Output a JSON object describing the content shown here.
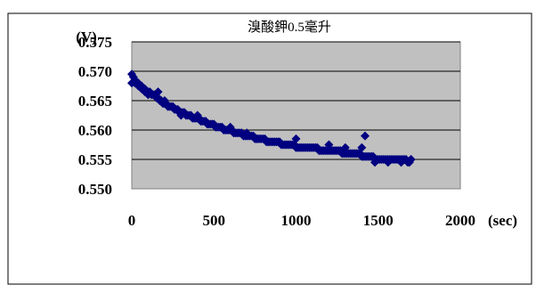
{
  "chart_data": {
    "type": "scatter",
    "title": "溴酸鉀0.5毫升",
    "ylabel": "(V)",
    "xlabel": "(sec)",
    "xlim": [
      0,
      2000
    ],
    "ylim": [
      0.55,
      0.575
    ],
    "x_ticks": [
      "0",
      "500",
      "1000",
      "1500",
      "2000"
    ],
    "y_ticks": [
      "0.550",
      "0.555",
      "0.560",
      "0.565",
      "0.570",
      "0.575"
    ],
    "grid": "horizontal",
    "plot_background": "#c0c0c0",
    "marker_color": "#000080",
    "series": [
      {
        "x": [
          0,
          10,
          20,
          30,
          40,
          50,
          60,
          70,
          80,
          90,
          100,
          110,
          120,
          130,
          140,
          150,
          160,
          170,
          180,
          190,
          200,
          210,
          220,
          230,
          240,
          250,
          260,
          270,
          280,
          290,
          300,
          310,
          320,
          330,
          340,
          350,
          360,
          370,
          380,
          390,
          400,
          410,
          420,
          430,
          440,
          450,
          460,
          470,
          480,
          490,
          500,
          510,
          520,
          530,
          540,
          550,
          560,
          570,
          580,
          590,
          600,
          610,
          620,
          630,
          640,
          650,
          660,
          670,
          680,
          690,
          700,
          710,
          720,
          730,
          740,
          750,
          760,
          770,
          780,
          790,
          800,
          810,
          820,
          830,
          840,
          850,
          860,
          870,
          880,
          890,
          900,
          910,
          920,
          930,
          940,
          950,
          960,
          970,
          980,
          990,
          1000,
          1010,
          1020,
          1030,
          1040,
          1050,
          1060,
          1070,
          1080,
          1090,
          1100,
          1110,
          1120,
          1130,
          1140,
          1150,
          1160,
          1170,
          1180,
          1190,
          1200,
          1210,
          1220,
          1230,
          1240,
          1250,
          1260,
          1270,
          1280,
          1290,
          1300,
          1310,
          1320,
          1330,
          1340,
          1350,
          1360,
          1370,
          1380,
          1390,
          1400,
          1410,
          1420,
          1430,
          1440,
          1450,
          1460,
          1470,
          1480,
          1490,
          1500,
          1510,
          1520,
          1530,
          1540,
          1550,
          1560,
          1570,
          1580,
          1590,
          1600,
          1610,
          1620,
          1630,
          1640,
          1650,
          1660,
          1670,
          1680,
          1690,
          1700,
          0,
          20,
          40,
          60,
          80,
          100,
          160,
          200,
          300,
          400,
          600,
          700,
          760,
          1000,
          1200,
          1300,
          1400,
          1420,
          1480,
          1560,
          1640,
          1700
        ],
        "y": [
          0.5695,
          0.569,
          0.5685,
          0.568,
          0.568,
          0.5675,
          0.5675,
          0.567,
          0.567,
          0.5665,
          0.5665,
          0.5665,
          0.566,
          0.566,
          0.566,
          0.5655,
          0.5655,
          0.565,
          0.565,
          0.5645,
          0.5645,
          0.5645,
          0.564,
          0.564,
          0.564,
          0.564,
          0.5635,
          0.5635,
          0.5635,
          0.563,
          0.563,
          0.563,
          0.563,
          0.5625,
          0.5625,
          0.5625,
          0.5625,
          0.562,
          0.562,
          0.562,
          0.562,
          0.562,
          0.5615,
          0.5615,
          0.5615,
          0.5615,
          0.561,
          0.561,
          0.561,
          0.561,
          0.561,
          0.5605,
          0.5605,
          0.5605,
          0.5605,
          0.5605,
          0.56,
          0.56,
          0.56,
          0.56,
          0.56,
          0.56,
          0.5595,
          0.5595,
          0.5595,
          0.5595,
          0.5595,
          0.5595,
          0.559,
          0.559,
          0.559,
          0.559,
          0.559,
          0.559,
          0.559,
          0.5585,
          0.5585,
          0.5585,
          0.5585,
          0.5585,
          0.5585,
          0.5585,
          0.558,
          0.558,
          0.558,
          0.558,
          0.558,
          0.558,
          0.558,
          0.558,
          0.558,
          0.5575,
          0.5575,
          0.5575,
          0.5575,
          0.5575,
          0.5575,
          0.5575,
          0.5575,
          0.5575,
          0.557,
          0.557,
          0.557,
          0.557,
          0.557,
          0.557,
          0.557,
          0.557,
          0.557,
          0.557,
          0.557,
          0.557,
          0.557,
          0.557,
          0.5565,
          0.5565,
          0.5565,
          0.5565,
          0.5565,
          0.5565,
          0.5565,
          0.5565,
          0.5565,
          0.5565,
          0.5565,
          0.5565,
          0.5565,
          0.5565,
          0.556,
          0.556,
          0.556,
          0.556,
          0.556,
          0.556,
          0.556,
          0.556,
          0.556,
          0.556,
          0.556,
          0.556,
          0.5555,
          0.5555,
          0.5555,
          0.5555,
          0.5555,
          0.5555,
          0.5555,
          0.5555,
          0.555,
          0.555,
          0.555,
          0.555,
          0.555,
          0.555,
          0.555,
          0.555,
          0.555,
          0.555,
          0.555,
          0.555,
          0.555,
          0.555,
          0.555,
          0.555,
          0.555,
          0.555,
          0.555,
          0.555,
          0.5545,
          0.5545,
          0.555,
          0.568,
          0.568,
          0.5675,
          0.567,
          0.5665,
          0.566,
          0.5665,
          0.565,
          0.5625,
          0.5625,
          0.5605,
          0.5595,
          0.5585,
          0.5585,
          0.5575,
          0.557,
          0.557,
          0.559,
          0.5545,
          0.5545,
          0.5545,
          0.555
        ]
      }
    ]
  }
}
